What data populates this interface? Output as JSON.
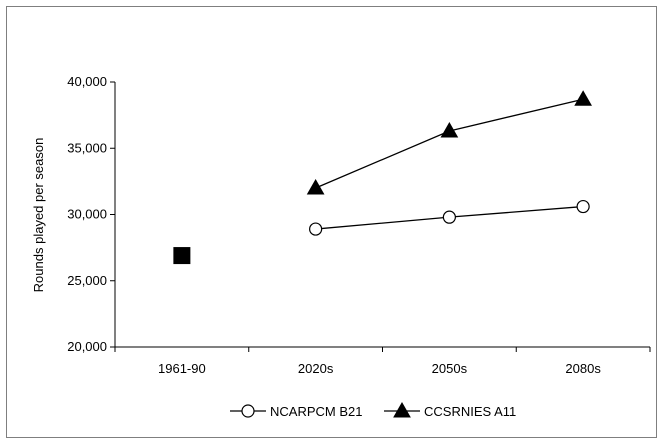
{
  "chart_data": {
    "type": "line",
    "categories": [
      "1961-90",
      "2020s",
      "2050s",
      "2080s"
    ],
    "ylabel": "Rounds played per season",
    "xlabel": "",
    "ylim": [
      20000,
      40000
    ],
    "yticks": [
      20000,
      25000,
      30000,
      35000,
      40000
    ],
    "ytick_labels": [
      "20,000",
      "25,000",
      "30,000",
      "35,000",
      "40,000"
    ],
    "grid": false,
    "legend_position": "bottom",
    "baseline": {
      "category": "1961-90",
      "value": 26900,
      "marker": "filled-square",
      "color": "#000000"
    },
    "series": [
      {
        "name": "NCARPCM B21",
        "marker": "open-circle",
        "color": "#000000",
        "values": [
          null,
          28900,
          29800,
          30600
        ]
      },
      {
        "name": "CCSRNIES A11",
        "marker": "filled-triangle",
        "color": "#000000",
        "values": [
          null,
          32000,
          36300,
          38700
        ]
      }
    ]
  }
}
